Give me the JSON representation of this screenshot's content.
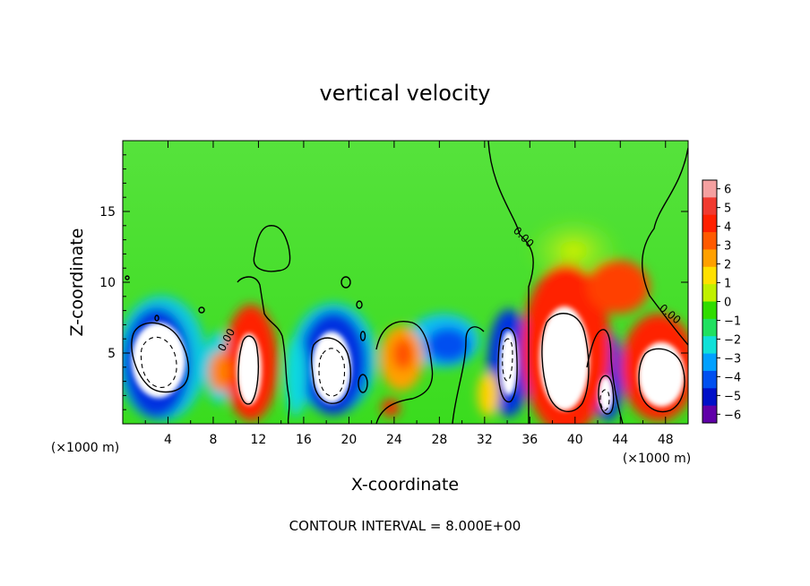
{
  "chart_data": {
    "type": "heatmap",
    "title": "vertical velocity",
    "xlabel": "X-coordinate",
    "ylabel": "Z-coordinate",
    "x_unit_left": "(×1000 m)",
    "x_unit_right": "(×1000 m)",
    "footer": "CONTOUR INTERVAL = 8.000E+00",
    "xlim": [
      0,
      50
    ],
    "ylim": [
      0,
      20
    ],
    "x_ticks": [
      "4",
      "8",
      "12",
      "16",
      "20",
      "24",
      "28",
      "32",
      "36",
      "40",
      "44",
      "48"
    ],
    "y_ticks": [
      "5",
      "10",
      "15"
    ],
    "contour_labels": [
      "0.00",
      "0.00",
      "0.00"
    ],
    "colorbar": {
      "range": [
        -6,
        6
      ],
      "ticks": [
        "6",
        "5",
        "4",
        "3",
        "2",
        "1",
        "0",
        "−1",
        "−2",
        "−3",
        "−4",
        "−5",
        "−6"
      ],
      "colors": [
        "#f4a0a0",
        "#f03a30",
        "#ff2000",
        "#ff5a00",
        "#ffa000",
        "#ffe000",
        "#c0f000",
        "#30dc00",
        "#20e060",
        "#10e0d8",
        "#00a0ff",
        "#0050f0",
        "#0010c8",
        "#6000a8"
      ]
    },
    "cells": [
      {
        "x": 2.5,
        "z": 4.5,
        "w": -8
      },
      {
        "x": 7.5,
        "z": 4.0,
        "w": 2
      },
      {
        "x": 11.3,
        "z": 4.5,
        "w": 8
      },
      {
        "x": 13.5,
        "z": 14.0,
        "w": 0.5
      },
      {
        "x": 18.5,
        "z": 4.0,
        "w": -8
      },
      {
        "x": 23.8,
        "z": 4.5,
        "w": 3
      },
      {
        "x": 29.5,
        "z": 6.0,
        "w": -3
      },
      {
        "x": 34.5,
        "z": 5.0,
        "w": -6
      },
      {
        "x": 38.5,
        "z": 5.5,
        "w": 9
      },
      {
        "x": 42.8,
        "z": 3.0,
        "w": -6
      },
      {
        "x": 46.5,
        "z": 3.5,
        "w": 9
      },
      {
        "x": 42.5,
        "z": 11.0,
        "w": 3
      }
    ]
  }
}
